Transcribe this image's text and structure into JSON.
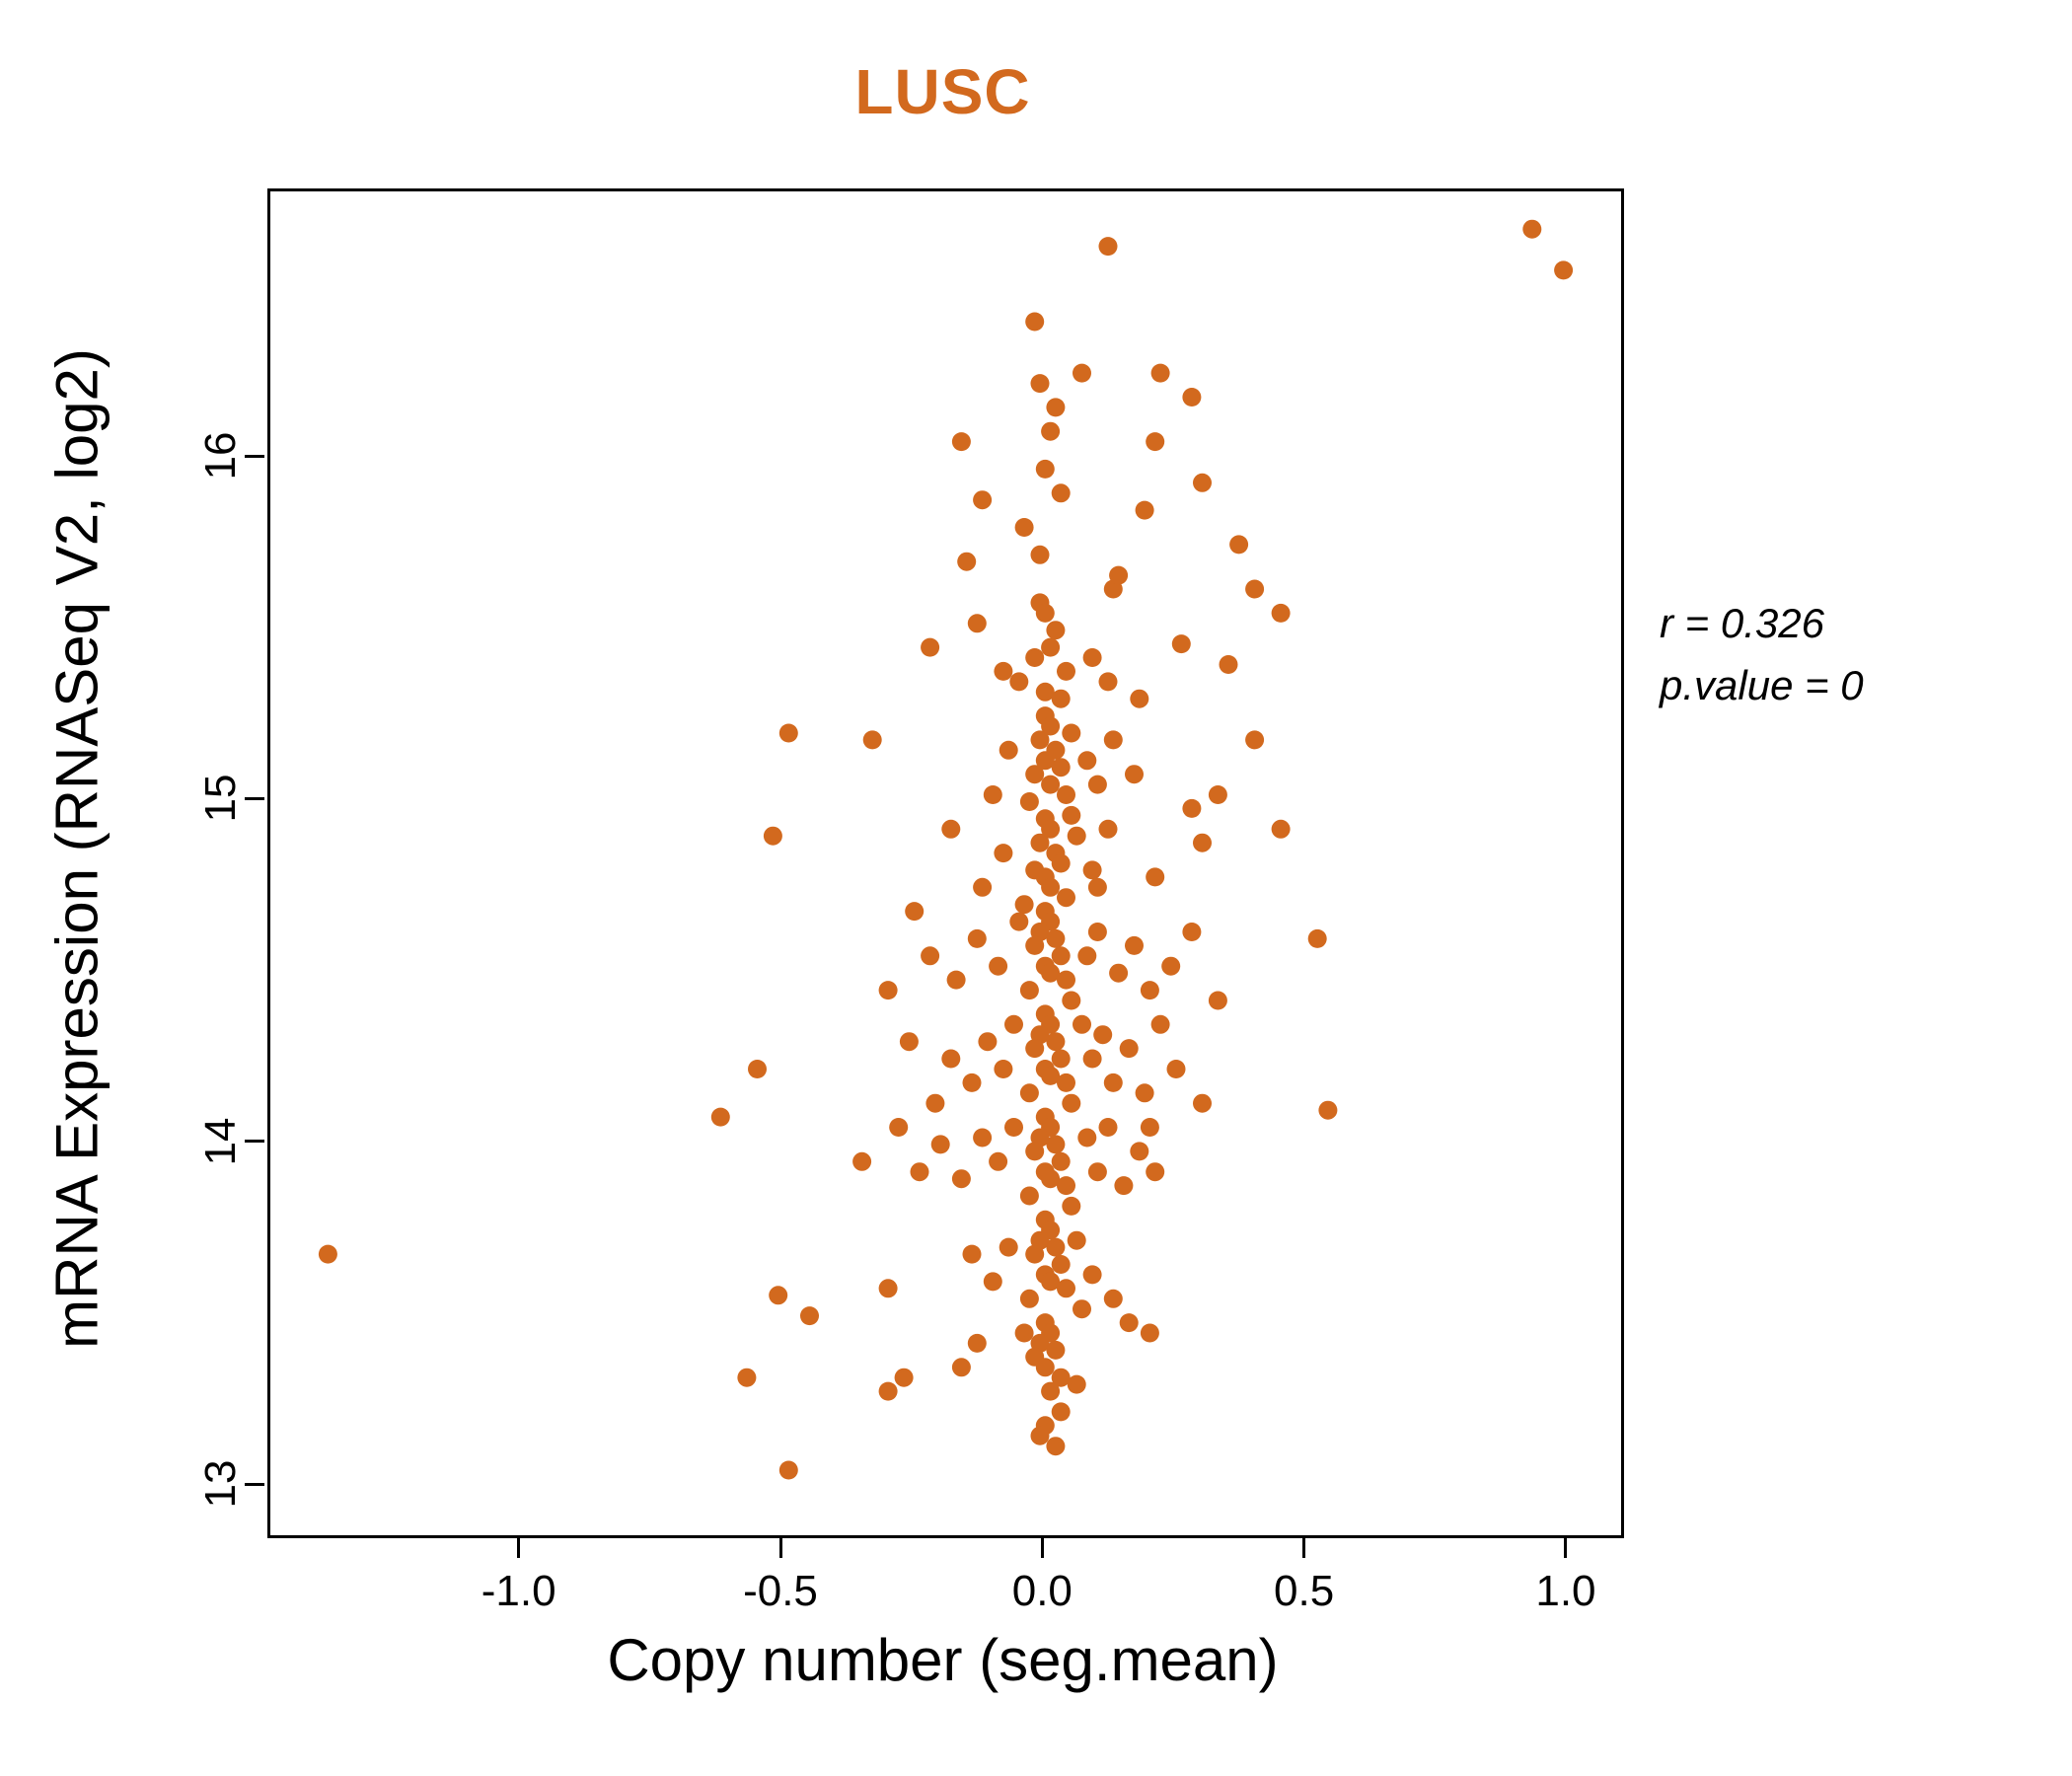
{
  "chart_data": {
    "type": "scatter",
    "title": "LUSC",
    "xlabel": "Copy number (seg.mean)",
    "ylabel": "mRNA Expression (RNASeq V2, log2)",
    "xlim": [
      -1.48,
      1.1
    ],
    "ylim": [
      12.86,
      16.78
    ],
    "x_ticks": {
      "values": [
        -1.0,
        -0.5,
        0.0,
        0.5,
        1.0
      ],
      "labels": [
        "-1.0",
        "-0.5",
        "0.0",
        "0.5",
        "1.0"
      ]
    },
    "y_ticks": {
      "values": [
        13,
        14,
        15,
        16
      ],
      "labels": [
        "13",
        "14",
        "15",
        "16"
      ]
    },
    "grid": false,
    "legend": "none",
    "point_color": "#D2691E",
    "title_color": "#D2691E",
    "annotations": [
      {
        "text": "r = 0.326"
      },
      {
        "text": "p.value = 0"
      }
    ],
    "points": [
      [
        -1.37,
        13.68
      ],
      [
        0.93,
        16.67
      ],
      [
        0.99,
        16.55
      ],
      [
        0.12,
        16.62
      ],
      [
        -0.02,
        16.4
      ],
      [
        -0.01,
        16.22
      ],
      [
        0.02,
        16.15
      ],
      [
        0.07,
        16.25
      ],
      [
        0.22,
        16.25
      ],
      [
        0.28,
        16.18
      ],
      [
        0.21,
        16.05
      ],
      [
        0.3,
        15.93
      ],
      [
        -0.16,
        16.05
      ],
      [
        0.01,
        16.08
      ],
      [
        0.0,
        15.97
      ],
      [
        -0.12,
        15.88
      ],
      [
        0.03,
        15.9
      ],
      [
        -0.04,
        15.8
      ],
      [
        0.19,
        15.85
      ],
      [
        -0.01,
        15.72
      ],
      [
        -0.15,
        15.7
      ],
      [
        0.13,
        15.62
      ],
      [
        0.37,
        15.75
      ],
      [
        0.4,
        15.62
      ],
      [
        0.14,
        15.66
      ],
      [
        -0.01,
        15.58
      ],
      [
        0.0,
        15.55
      ],
      [
        0.02,
        15.5
      ],
      [
        0.01,
        15.45
      ],
      [
        -0.02,
        15.42
      ],
      [
        0.04,
        15.38
      ],
      [
        -0.05,
        15.35
      ],
      [
        0.0,
        15.32
      ],
      [
        0.03,
        15.3
      ],
      [
        -0.22,
        15.45
      ],
      [
        -0.13,
        15.52
      ],
      [
        -0.08,
        15.38
      ],
      [
        0.09,
        15.42
      ],
      [
        0.12,
        15.35
      ],
      [
        0.26,
        15.46
      ],
      [
        0.35,
        15.4
      ],
      [
        0.45,
        15.55
      ],
      [
        0.18,
        15.3
      ],
      [
        -0.49,
        15.2
      ],
      [
        -0.33,
        15.18
      ],
      [
        0.0,
        15.25
      ],
      [
        0.01,
        15.22
      ],
      [
        -0.01,
        15.18
      ],
      [
        0.02,
        15.15
      ],
      [
        0.0,
        15.12
      ],
      [
        0.03,
        15.1
      ],
      [
        -0.02,
        15.08
      ],
      [
        0.01,
        15.05
      ],
      [
        0.04,
        15.02
      ],
      [
        -0.03,
        15.0
      ],
      [
        0.05,
        15.2
      ],
      [
        0.08,
        15.12
      ],
      [
        0.1,
        15.05
      ],
      [
        0.13,
        15.18
      ],
      [
        0.4,
        15.18
      ],
      [
        0.33,
        15.02
      ],
      [
        0.28,
        14.98
      ],
      [
        0.17,
        15.08
      ],
      [
        -0.07,
        15.15
      ],
      [
        -0.1,
        15.02
      ],
      [
        -0.52,
        14.9
      ],
      [
        0.0,
        14.95
      ],
      [
        0.01,
        14.92
      ],
      [
        -0.01,
        14.88
      ],
      [
        0.02,
        14.85
      ],
      [
        0.03,
        14.82
      ],
      [
        -0.02,
        14.8
      ],
      [
        0.0,
        14.78
      ],
      [
        0.01,
        14.75
      ],
      [
        0.04,
        14.72
      ],
      [
        -0.04,
        14.7
      ],
      [
        0.06,
        14.9
      ],
      [
        0.09,
        14.8
      ],
      [
        0.12,
        14.92
      ],
      [
        0.3,
        14.88
      ],
      [
        0.45,
        14.92
      ],
      [
        0.1,
        14.75
      ],
      [
        -0.08,
        14.85
      ],
      [
        -0.12,
        14.75
      ],
      [
        -0.18,
        14.92
      ],
      [
        0.52,
        14.6
      ],
      [
        0.21,
        14.78
      ],
      [
        0.05,
        14.96
      ],
      [
        0.0,
        14.68
      ],
      [
        0.01,
        14.65
      ],
      [
        -0.01,
        14.62
      ],
      [
        0.02,
        14.6
      ],
      [
        -0.02,
        14.58
      ],
      [
        0.03,
        14.55
      ],
      [
        0.0,
        14.52
      ],
      [
        0.01,
        14.5
      ],
      [
        0.04,
        14.48
      ],
      [
        -0.03,
        14.45
      ],
      [
        0.05,
        14.42
      ],
      [
        -0.05,
        14.65
      ],
      [
        0.08,
        14.55
      ],
      [
        0.1,
        14.62
      ],
      [
        0.14,
        14.5
      ],
      [
        0.17,
        14.58
      ],
      [
        0.2,
        14.45
      ],
      [
        0.24,
        14.52
      ],
      [
        0.28,
        14.62
      ],
      [
        -0.09,
        14.52
      ],
      [
        -0.13,
        14.6
      ],
      [
        -0.17,
        14.48
      ],
      [
        -0.22,
        14.55
      ],
      [
        -0.25,
        14.68
      ],
      [
        -0.3,
        14.45
      ],
      [
        0.33,
        14.42
      ],
      [
        0.0,
        14.38
      ],
      [
        0.01,
        14.35
      ],
      [
        -0.01,
        14.32
      ],
      [
        0.02,
        14.3
      ],
      [
        -0.02,
        14.28
      ],
      [
        0.03,
        14.25
      ],
      [
        0.0,
        14.22
      ],
      [
        0.01,
        14.2
      ],
      [
        0.04,
        14.18
      ],
      [
        -0.03,
        14.15
      ],
      [
        0.05,
        14.12
      ],
      [
        0.07,
        14.35
      ],
      [
        0.09,
        14.25
      ],
      [
        0.11,
        14.32
      ],
      [
        0.13,
        14.18
      ],
      [
        0.16,
        14.28
      ],
      [
        0.19,
        14.15
      ],
      [
        0.22,
        14.35
      ],
      [
        -0.06,
        14.35
      ],
      [
        -0.08,
        14.22
      ],
      [
        -0.11,
        14.3
      ],
      [
        -0.14,
        14.18
      ],
      [
        -0.18,
        14.25
      ],
      [
        -0.21,
        14.12
      ],
      [
        -0.26,
        14.3
      ],
      [
        -0.55,
        14.22
      ],
      [
        -0.62,
        14.08
      ],
      [
        0.54,
        14.1
      ],
      [
        0.25,
        14.22
      ],
      [
        0.3,
        14.12
      ],
      [
        0.0,
        14.08
      ],
      [
        0.01,
        14.05
      ],
      [
        -0.01,
        14.02
      ],
      [
        0.02,
        14.0
      ],
      [
        -0.02,
        13.98
      ],
      [
        0.03,
        13.95
      ],
      [
        0.0,
        13.92
      ],
      [
        0.01,
        13.9
      ],
      [
        0.04,
        13.88
      ],
      [
        -0.03,
        13.85
      ],
      [
        0.05,
        13.82
      ],
      [
        0.08,
        14.02
      ],
      [
        0.1,
        13.92
      ],
      [
        0.12,
        14.05
      ],
      [
        0.15,
        13.88
      ],
      [
        0.18,
        13.98
      ],
      [
        -0.06,
        14.05
      ],
      [
        -0.09,
        13.95
      ],
      [
        -0.12,
        14.02
      ],
      [
        -0.16,
        13.9
      ],
      [
        -0.2,
        14.0
      ],
      [
        -0.24,
        13.92
      ],
      [
        -0.35,
        13.95
      ],
      [
        -0.28,
        14.05
      ],
      [
        0.21,
        13.92
      ],
      [
        0.2,
        14.05
      ],
      [
        0.0,
        13.78
      ],
      [
        0.01,
        13.75
      ],
      [
        -0.01,
        13.72
      ],
      [
        0.02,
        13.7
      ],
      [
        -0.02,
        13.68
      ],
      [
        0.03,
        13.65
      ],
      [
        0.0,
        13.62
      ],
      [
        0.01,
        13.6
      ],
      [
        0.04,
        13.58
      ],
      [
        -0.03,
        13.55
      ],
      [
        0.06,
        13.72
      ],
      [
        0.09,
        13.62
      ],
      [
        -0.07,
        13.7
      ],
      [
        -0.1,
        13.6
      ],
      [
        -0.14,
        13.68
      ],
      [
        -0.45,
        13.5
      ],
      [
        -0.51,
        13.56
      ],
      [
        0.13,
        13.55
      ],
      [
        -0.3,
        13.58
      ],
      [
        0.07,
        13.52
      ],
      [
        0.0,
        13.48
      ],
      [
        0.01,
        13.45
      ],
      [
        -0.01,
        13.42
      ],
      [
        0.02,
        13.4
      ],
      [
        -0.02,
        13.38
      ],
      [
        0.0,
        13.35
      ],
      [
        0.03,
        13.32
      ],
      [
        -0.04,
        13.45
      ],
      [
        -0.13,
        13.42
      ],
      [
        -0.16,
        13.35
      ],
      [
        -0.27,
        13.32
      ],
      [
        -0.3,
        13.28
      ],
      [
        -0.57,
        13.32
      ],
      [
        0.2,
        13.45
      ],
      [
        0.16,
        13.48
      ],
      [
        0.06,
        13.3
      ],
      [
        0.01,
        13.28
      ],
      [
        0.0,
        13.18
      ],
      [
        -0.01,
        13.15
      ],
      [
        0.02,
        13.12
      ],
      [
        -0.49,
        13.05
      ],
      [
        0.03,
        13.22
      ]
    ]
  }
}
